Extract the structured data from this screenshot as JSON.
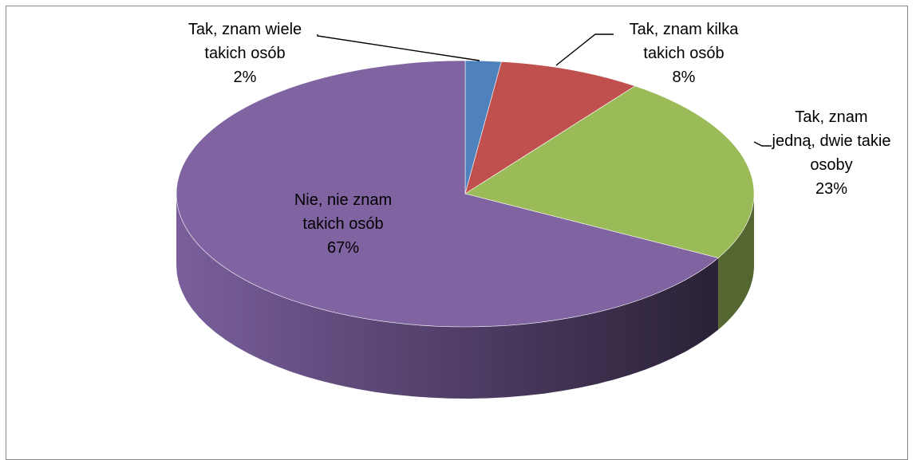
{
  "chart_data": {
    "type": "pie",
    "style": "3d",
    "title": "",
    "slices": [
      {
        "label_lines": [
          "Tak, znam wiele",
          "takich osób"
        ],
        "percent_label": "2%",
        "value": 2,
        "color": "#4F81BD"
      },
      {
        "label_lines": [
          "Tak, znam kilka",
          "takich osób"
        ],
        "percent_label": "8%",
        "value": 8,
        "color": "#C0504D"
      },
      {
        "label_lines": [
          "Tak, znam",
          "jedną, dwie takie",
          "osoby"
        ],
        "percent_label": "23%",
        "value": 23,
        "color": "#9BBB59"
      },
      {
        "label_lines": [
          "Nie, nie znam",
          "takich osób"
        ],
        "percent_label": "67%",
        "value": 67,
        "color": "#8064A2"
      }
    ],
    "legend": "none"
  }
}
